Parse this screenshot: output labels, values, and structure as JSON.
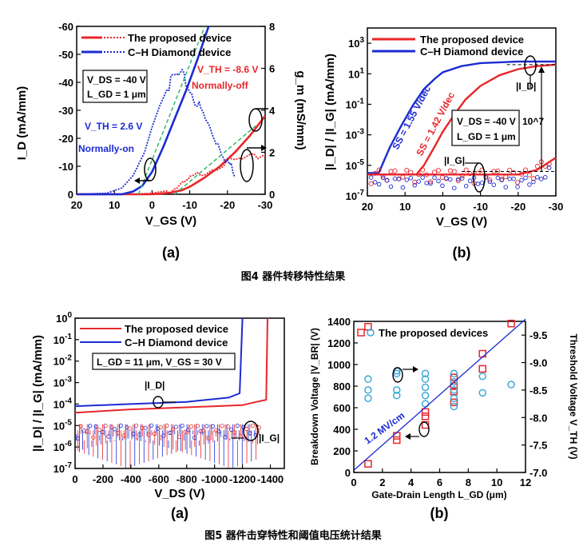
{
  "figure4": {
    "caption": "图4 器件转移特性结果",
    "panel_a": {
      "label": "(a)",
      "legend": [
        "The proposed device",
        "C–H Diamond device"
      ],
      "box_lines": [
        "V_DS = -40 V",
        "L_GD = 1 μm"
      ],
      "vth_red": "V_TH = -8.6 V",
      "normally_off": "Normally-off",
      "vth_blue": "V_TH = 2.6 V",
      "normally_on": "Normally-on",
      "xlabel": "V_GS (V)",
      "ylabel_left": "I_D (mA/mm)",
      "ylabel_right": "g_m (mS/mm)"
    },
    "panel_b": {
      "label": "(b)",
      "legend": [
        "The proposed device",
        "C–H Diamond device"
      ],
      "ss_blue": "SS = 1.55 V/dec",
      "ss_red": "SS = 1.42 V/dec",
      "box_lines": [
        "V_DS = -40 V",
        "L_GD = 1 μm"
      ],
      "ratio": "10^7",
      "id_label": "|I_D|",
      "ig_label": "|I_G|",
      "xlabel": "V_GS (V)",
      "ylabel": "|I_D| / |I_G| (mA/mm)"
    }
  },
  "figure5": {
    "caption": "图5 器件击穿特性和阈值电压统计结果",
    "panel_a": {
      "label": "(a)",
      "legend": [
        "The proposed device",
        "C–H Diamond device"
      ],
      "box_text": "L_GD = 11 μm, V_GS = 30 V",
      "id_label": "|I_D|",
      "ig_label": "|I_G|",
      "xlabel": "V_DS (V)",
      "ylabel": "|I_D| / |I_G| (mA/mm)"
    },
    "panel_b": {
      "label": "(b)",
      "legend": "The proposed devices",
      "slope_label": "1.2 MV/cm",
      "xlabel": "Gate-Drain Length L_GD (μm)",
      "ylabel_left": "Breakdown Voltage |V_BR| (V)",
      "ylabel_right": "Threshold Voltage V_TH (V)"
    }
  },
  "chart_data": [
    {
      "id": "fig4a",
      "type": "line",
      "title": "",
      "xlabel": "V_GS (V)",
      "ylabel": "I_D (mA/mm)",
      "y2label": "g_m (mS/mm)",
      "xlim": [
        20,
        -30
      ],
      "ylim": [
        0,
        -60
      ],
      "y2lim": [
        0,
        8
      ],
      "x_ticks": [
        20,
        10,
        0,
        -10,
        -20,
        -30
      ],
      "y_ticks": [
        0,
        -10,
        -20,
        -30,
        -40,
        -50,
        -60
      ],
      "y2_ticks": [
        0,
        2,
        4,
        6,
        8
      ],
      "series": [
        {
          "name": "The proposed device I_D",
          "color": "#e8262a",
          "style": "solid",
          "x": [
            20,
            10,
            5,
            0,
            -2,
            -5,
            -8,
            -10,
            -14,
            -18,
            -22,
            -26,
            -30
          ],
          "y": [
            0,
            0,
            0,
            0,
            -0.2,
            -0.6,
            -1.5,
            -2.7,
            -6,
            -10,
            -15,
            -21,
            -28
          ]
        },
        {
          "name": "The proposed device g_m",
          "color": "#e8262a",
          "style": "dotted",
          "x": [
            20,
            5,
            0,
            -5,
            -8,
            -10,
            -14,
            -18,
            -22,
            -26,
            -30
          ],
          "y": [
            0,
            0,
            0.05,
            0.2,
            0.4,
            0.7,
            1.1,
            1.4,
            1.6,
            1.7,
            1.9
          ]
        },
        {
          "name": "C–H Diamond device I_D",
          "color": "#1c2bd1",
          "style": "solid",
          "x": [
            20,
            8,
            5,
            2.6,
            0,
            -3,
            -6,
            -9,
            -12,
            -15
          ],
          "y": [
            0,
            0,
            -1,
            -3,
            -8,
            -17,
            -27,
            -37,
            -48,
            -60
          ]
        },
        {
          "name": "C–H Diamond device g_m",
          "color": "#1c2bd1",
          "style": "dotted",
          "x": [
            20,
            12,
            8,
            5,
            2,
            0,
            -2,
            -4,
            -6,
            -8,
            -10,
            -12,
            -14,
            -16,
            -18,
            -20,
            -22
          ],
          "y": [
            0,
            0.05,
            0.3,
            0.9,
            2.0,
            3.2,
            4.2,
            5.0,
            5.6,
            5.6,
            5.0,
            4.3,
            3.6,
            2.9,
            2.3,
            1.6,
            0.8
          ]
        }
      ]
    },
    {
      "id": "fig4b",
      "type": "line",
      "title": "",
      "xlabel": "V_GS (V)",
      "ylabel": "|I_D| / |I_G| (mA/mm)",
      "scale_y": "log",
      "xlim": [
        20,
        -30
      ],
      "ylim_log10": [
        -7,
        4
      ],
      "x_ticks": [
        20,
        10,
        0,
        -10,
        -20,
        -30
      ],
      "y_tick_labels": [
        "10^-7",
        "10^-5",
        "10^-3",
        "10^-1",
        "10^1",
        "10^3"
      ],
      "series": [
        {
          "name": "The proposed device |I_D|",
          "color": "#e8262a",
          "x": [
            20,
            7,
            5,
            2,
            0,
            -3,
            -6,
            -10,
            -15,
            -20,
            -25,
            -30
          ],
          "log10y": [
            -5.6,
            -5.6,
            -5,
            -3.7,
            -2.8,
            -1.7,
            -0.7,
            0.2,
            0.9,
            1.3,
            1.5,
            1.6
          ]
        },
        {
          "name": "C–H Diamond device |I_D|",
          "color": "#1c2bd1",
          "x": [
            20,
            17,
            14,
            11,
            8,
            5,
            2,
            0,
            -5,
            -10,
            -20,
            -30
          ],
          "log10y": [
            -5.5,
            -5.5,
            -3.8,
            -2.4,
            -1.1,
            0,
            0.7,
            1.1,
            1.5,
            1.7,
            1.8,
            1.8
          ]
        },
        {
          "name": "|I_G|",
          "color": "#e8262a",
          "x": [
            20,
            -20,
            -25,
            -30
          ],
          "log10y": [
            -5.6,
            -5.6,
            -5.3,
            -4.5
          ]
        }
      ]
    },
    {
      "id": "fig5a",
      "type": "line",
      "title": "",
      "xlabel": "V_DS (V)",
      "ylabel": "|I_D| / |I_G| (mA/mm)",
      "scale_y": "log",
      "xlim": [
        0,
        -1500
      ],
      "ylim_log10": [
        -7,
        0
      ],
      "x_ticks": [
        0,
        -200,
        -400,
        -600,
        -800,
        -1000,
        -1200,
        -1400
      ],
      "y_tick_labels": [
        "10^-7",
        "10^-6",
        "10^-5",
        "10^-4",
        "10^-3",
        "10^-2",
        "10^-1",
        "10^0"
      ],
      "series": [
        {
          "name": "The proposed device |I_D|",
          "color": "#e8262a",
          "x": [
            0,
            -400,
            -800,
            -1200,
            -1300,
            -1370,
            -1380
          ],
          "log10y": [
            -4.4,
            -4.25,
            -4.15,
            -4.05,
            -3.9,
            -3.8,
            0
          ]
        },
        {
          "name": "C–H Diamond device |I_D|",
          "color": "#1c2bd1",
          "x": [
            0,
            -400,
            -800,
            -1100,
            -1180,
            -1200
          ],
          "log10y": [
            -4.1,
            -4.0,
            -3.9,
            -3.7,
            -3.5,
            0
          ]
        }
      ]
    },
    {
      "id": "fig5b",
      "type": "scatter",
      "title": "",
      "xlabel": "Gate-Drain Length L_GD (μm)",
      "ylabel": "Breakdown Voltage |V_BR| (V)",
      "y2label": "Threshold Voltage V_TH (V)",
      "xlim": [
        0,
        12
      ],
      "ylim": [
        0,
        1400
      ],
      "y2lim": [
        -7.0,
        -9.75
      ],
      "x_ticks": [
        0,
        2,
        4,
        6,
        8,
        10,
        12
      ],
      "y_ticks": [
        0,
        200,
        400,
        600,
        800,
        1000,
        1200,
        1400
      ],
      "y2_ticks": [
        -7.0,
        -7.5,
        -8.0,
        -8.5,
        -9.0,
        -9.5
      ],
      "series": [
        {
          "name": "Breakdown voltage",
          "marker": "square",
          "color": "#e8262a",
          "x": [
            1,
            1,
            3,
            3,
            5,
            5,
            5,
            7,
            7,
            7,
            7,
            9,
            9,
            11
          ],
          "y": [
            80,
            1350,
            300,
            340,
            440,
            520,
            560,
            650,
            750,
            800,
            880,
            960,
            1100,
            1380
          ]
        },
        {
          "name": "Threshold voltage",
          "marker": "circle",
          "color": "#3fa9d8",
          "x": [
            1,
            1,
            1,
            3,
            3,
            3,
            3,
            5,
            5,
            5,
            5,
            5,
            7,
            7,
            7,
            7,
            7,
            9,
            9,
            11
          ],
          "y": [
            -8.35,
            -8.5,
            -8.7,
            -8.4,
            -8.5,
            -8.8,
            -8.85,
            -8.25,
            -8.4,
            -8.55,
            -8.7,
            -8.8,
            -8.2,
            -8.35,
            -8.5,
            -8.65,
            -8.8,
            -8.45,
            -8.75,
            -8.6
          ]
        },
        {
          "name": "1.2 MV/cm fit",
          "type": "line",
          "color": "#1c2bd1",
          "x": [
            0,
            12
          ],
          "y": [
            20,
            1420
          ]
        }
      ]
    }
  ]
}
